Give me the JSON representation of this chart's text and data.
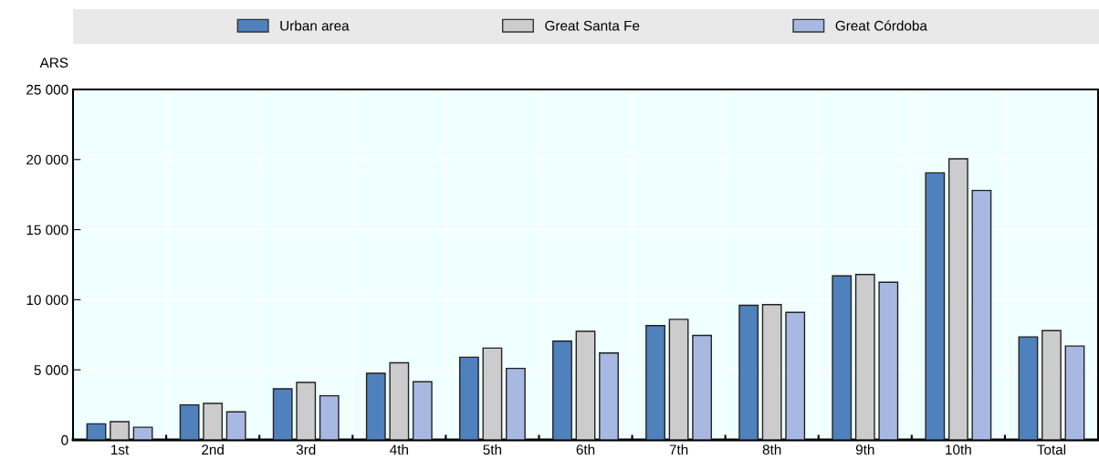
{
  "chart_data": {
    "type": "bar",
    "ylabel": "ARS",
    "categories": [
      "1st",
      "2nd",
      "3rd",
      "4th",
      "5th",
      "6th",
      "7th",
      "8th",
      "9th",
      "10th",
      "Total"
    ],
    "series": [
      {
        "name": "Urban area",
        "color": "#4f81bd",
        "values": [
          1150,
          2500,
          3650,
          4750,
          5900,
          7050,
          8150,
          9600,
          11700,
          19050,
          7350
        ]
      },
      {
        "name": "Great Santa Fe",
        "color": "#cccccc",
        "values": [
          1300,
          2600,
          4100,
          5500,
          6550,
          7750,
          8600,
          9650,
          11800,
          20050,
          7800
        ]
      },
      {
        "name": "Great Córdoba",
        "color": "#a7b9e3",
        "values": [
          900,
          2000,
          3150,
          4150,
          5100,
          6200,
          7450,
          9100,
          11250,
          17800,
          6700
        ]
      }
    ],
    "ylim": [
      0,
      25000
    ],
    "yticks": [
      {
        "value": 0,
        "label": "0"
      },
      {
        "value": 5000,
        "label": "5 000"
      },
      {
        "value": 10000,
        "label": "10 000"
      },
      {
        "value": 15000,
        "label": "15 000"
      },
      {
        "value": 20000,
        "label": "20 000"
      },
      {
        "value": 25000,
        "label": "25 000"
      }
    ],
    "grid": true,
    "legend": "top"
  }
}
